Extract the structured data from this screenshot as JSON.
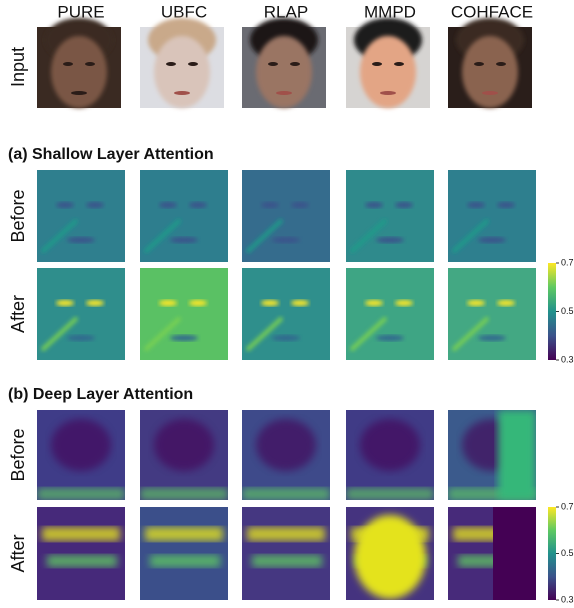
{
  "columns": [
    "PURE",
    "UBFC",
    "RLAP",
    "MMPD",
    "COHFACE"
  ],
  "input_label": "Input",
  "sections": [
    {
      "title": "(a) Shallow Layer Attention",
      "rows": [
        "Before",
        "After"
      ],
      "colorbar_ticks": [
        0.7,
        0.5,
        0.3
      ]
    },
    {
      "title": "(b) Deep Layer Attention",
      "rows": [
        "Before",
        "After"
      ],
      "colorbar_ticks": [
        0.7,
        0.5,
        0.3
      ]
    }
  ]
}
